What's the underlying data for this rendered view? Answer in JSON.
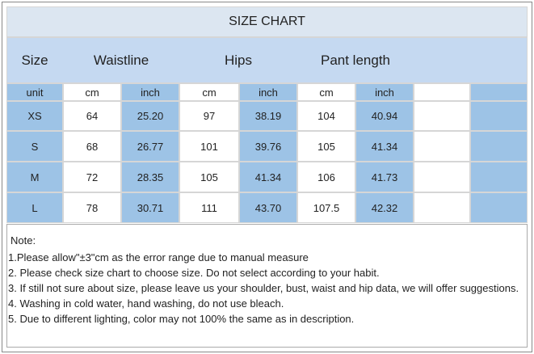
{
  "title": "SIZE CHART",
  "header": [
    "Size",
    "Waistline",
    "Hips",
    "Pant length"
  ],
  "units": [
    "unit",
    "cm",
    "inch",
    "cm",
    "inch",
    "cm",
    "inch"
  ],
  "rows": [
    [
      "XS",
      "64",
      "25.20",
      "97",
      "38.19",
      "104",
      "40.94"
    ],
    [
      "S",
      "68",
      "26.77",
      "101",
      "39.76",
      "105",
      "41.34"
    ],
    [
      "M",
      "72",
      "28.35",
      "105",
      "41.34",
      "106",
      "41.73"
    ],
    [
      "L",
      "78",
      "30.71",
      "111",
      "43.70",
      "107.5",
      "42.32"
    ]
  ],
  "notes": {
    "heading": "Note:",
    "lines": [
      "1.Please allow\"±3\"cm as the error range due to manual measure",
      "2. Please check size chart to choose size. Do not select according to your habit.",
      "3. If still not sure about size, please leave us your shoulder, bust, waist and hip data, we will offer suggestions.",
      "4. Washing in cold water, hand washing, do not use bleach.",
      "5. Due to different lighting, color may not 100% the same as in description."
    ]
  }
}
